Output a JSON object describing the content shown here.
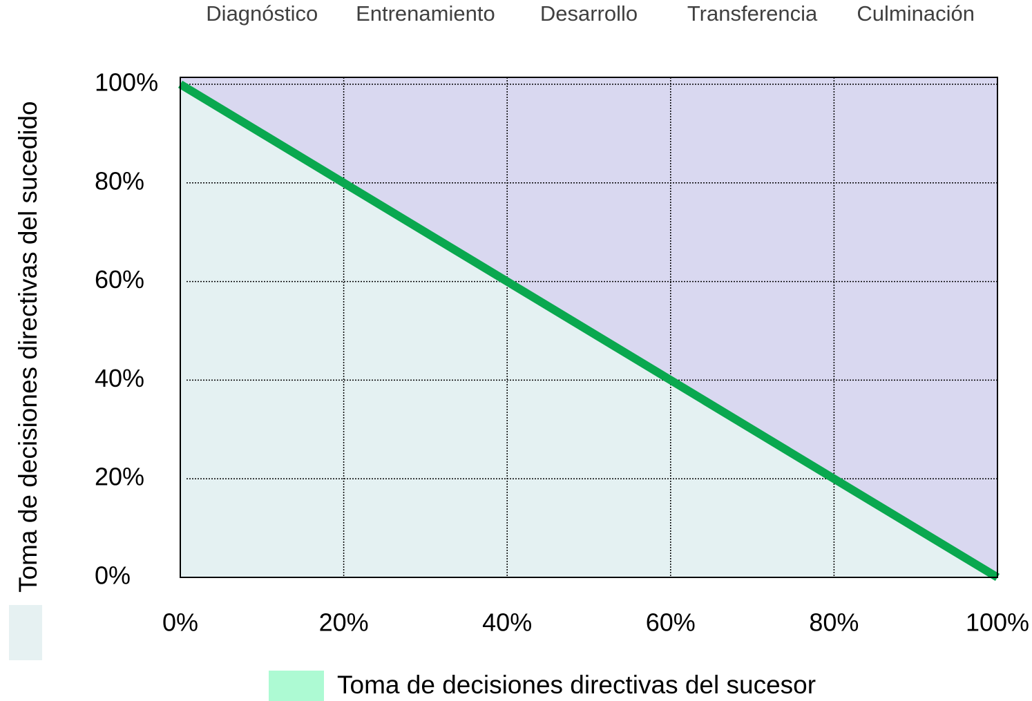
{
  "chart_data": {
    "type": "line",
    "stages": [
      "Diagnóstico",
      "Entrenamiento",
      "Desarrollo",
      "Transferencia",
      "Culminación"
    ],
    "x_label": "Toma de decisiones directivas del sucesor",
    "y_label": "Toma de decisiones directivas del sucedido",
    "x": [
      0,
      100
    ],
    "series": [
      {
        "color": "#0aa84f",
        "values": [
          100,
          0
        ]
      }
    ],
    "below_color": "#e4f1f2",
    "above_color": "#d9d8f0",
    "x_legend_color": "#adfad3",
    "y_legend_color": "#e6f1f2",
    "xlim": [
      0,
      100
    ],
    "ylim": [
      0,
      100
    ],
    "xticks": [
      {
        "value": 0,
        "label": "0%"
      },
      {
        "value": 20,
        "label": "20%"
      },
      {
        "value": 40,
        "label": "40%"
      },
      {
        "value": 60,
        "label": "60%"
      },
      {
        "value": 80,
        "label": "80%"
      },
      {
        "value": 100,
        "label": "100%"
      }
    ],
    "yticks": [
      {
        "value": 0,
        "label": "0%"
      },
      {
        "value": 20,
        "label": "20%"
      },
      {
        "value": 40,
        "label": "40%"
      },
      {
        "value": 60,
        "label": "60%"
      },
      {
        "value": 80,
        "label": "80%"
      },
      {
        "value": 100,
        "label": "100%"
      }
    ],
    "grid": true
  }
}
